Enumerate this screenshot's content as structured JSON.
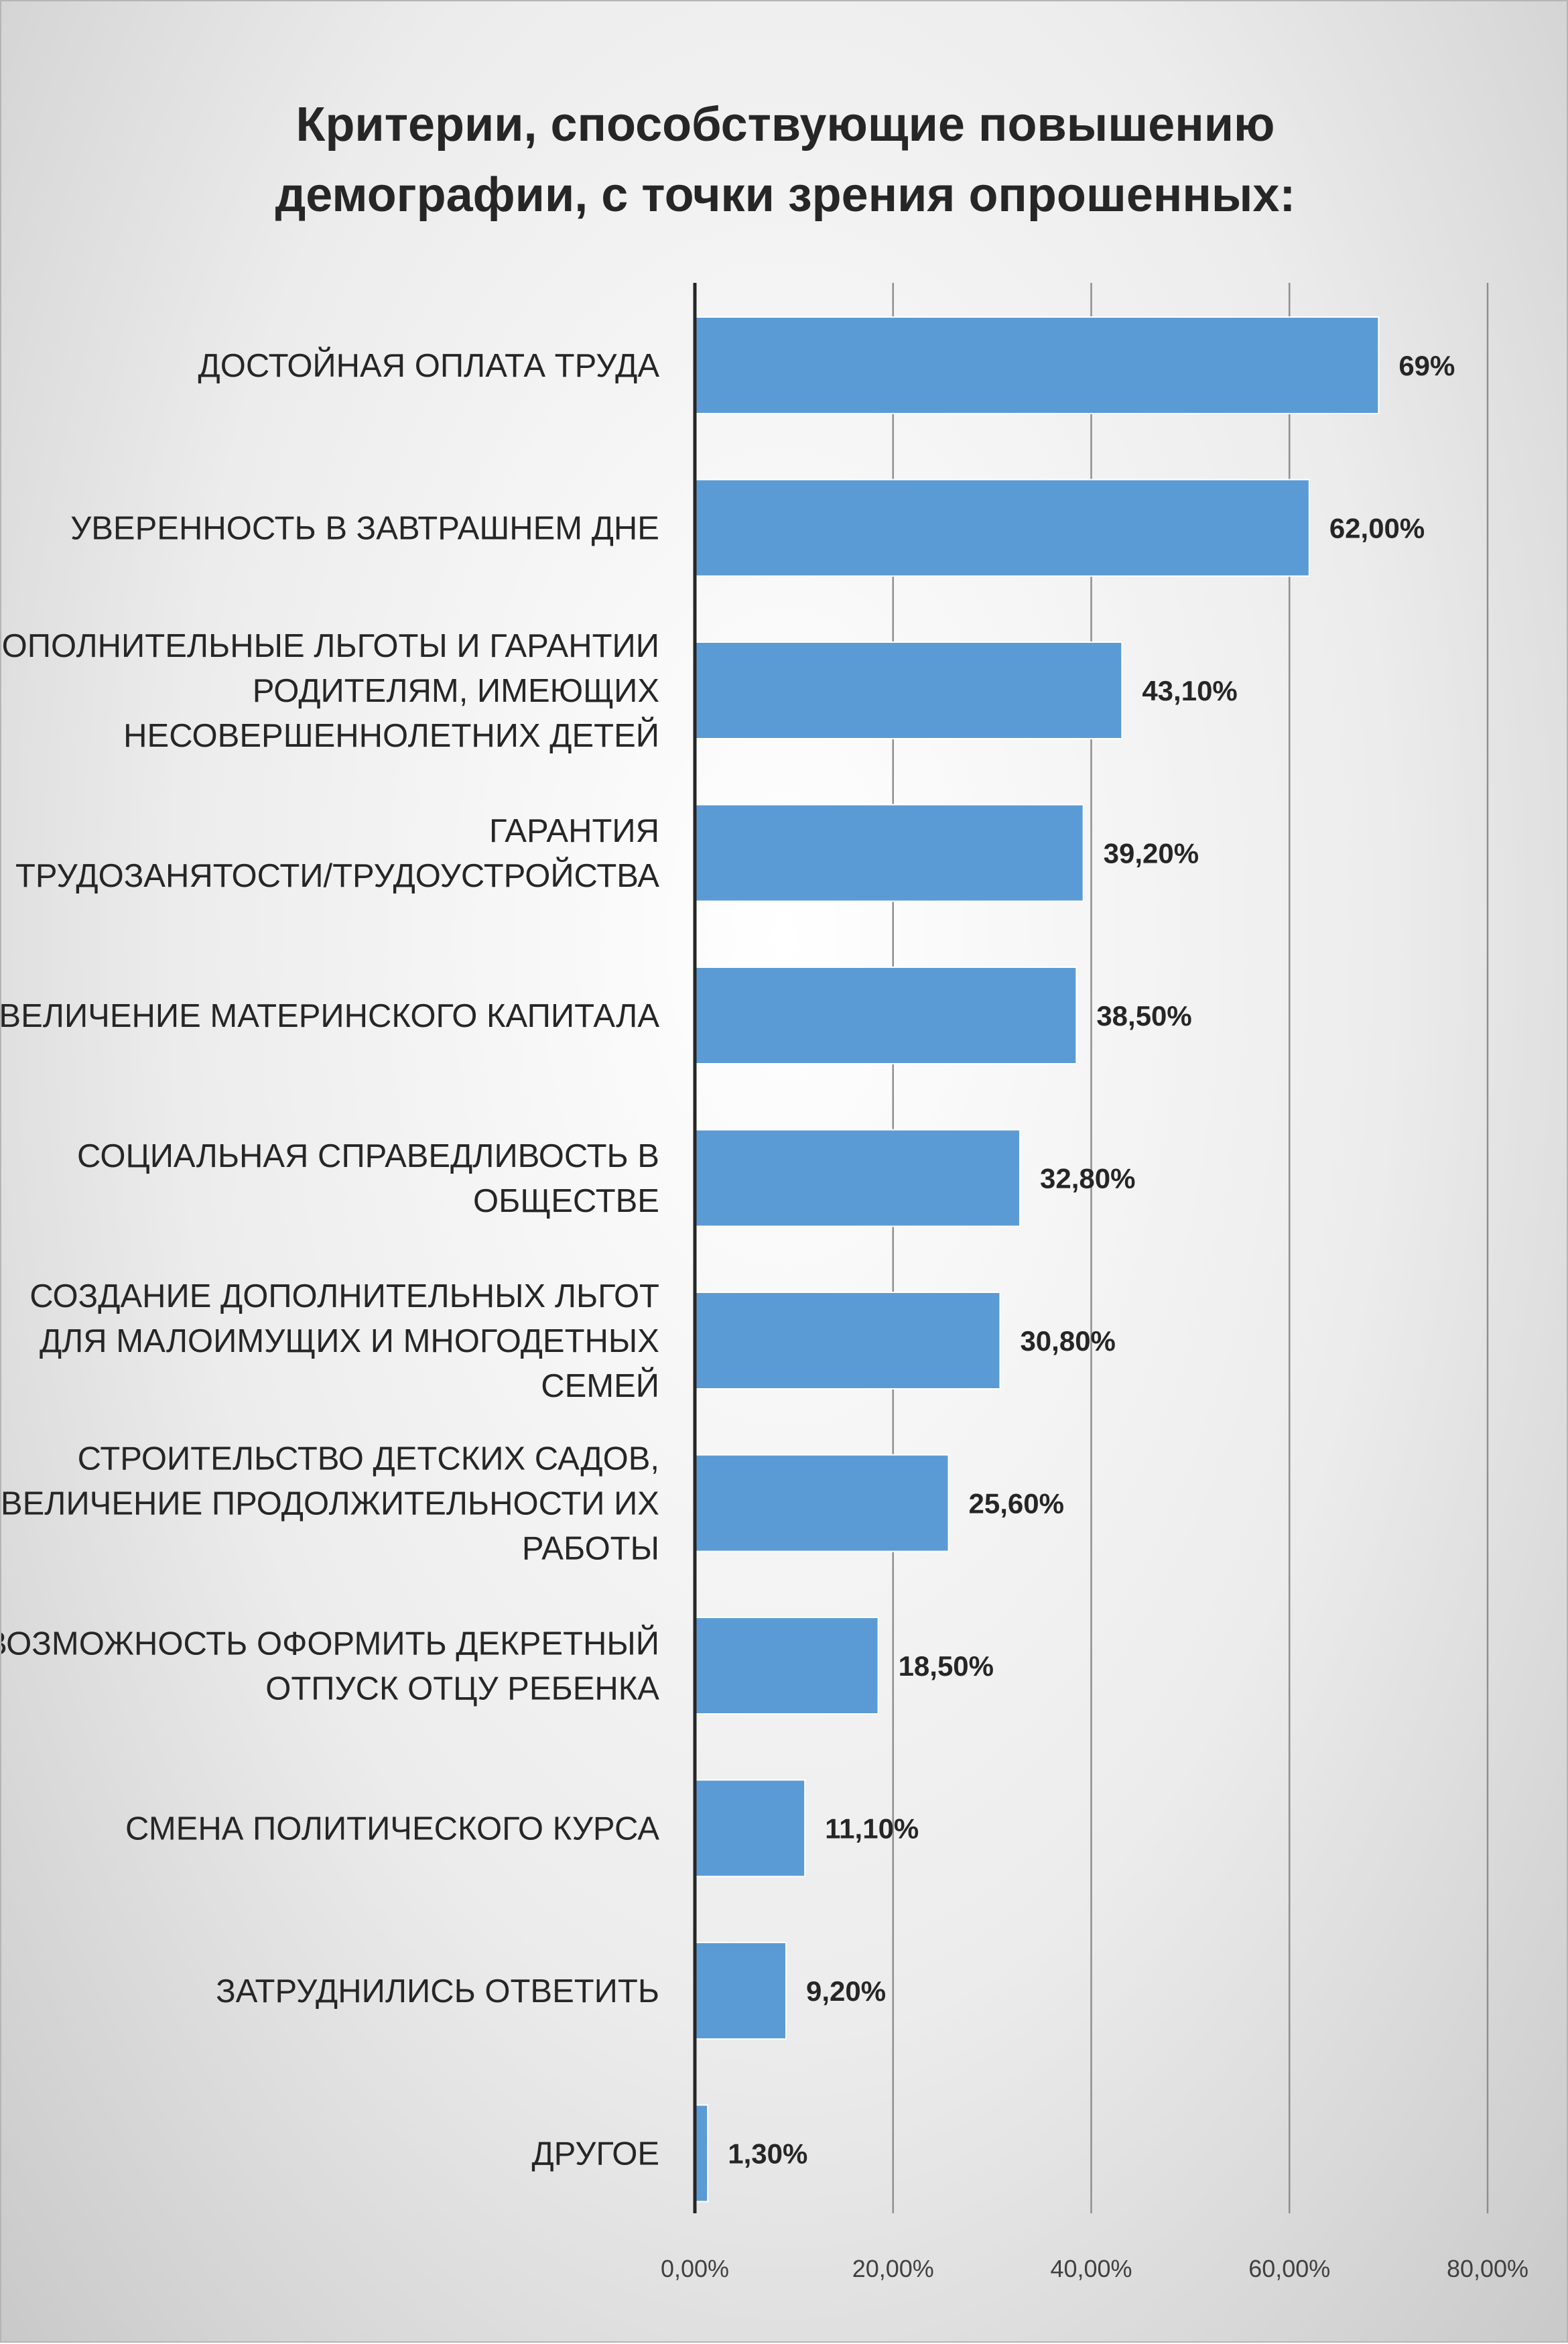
{
  "chart_data": {
    "type": "bar",
    "orientation": "horizontal",
    "title": [
      "Критерии, способствующие повышению",
      "демографии, с точки зрения опрошенных:"
    ],
    "categories": [
      [
        "ДОСТОЙНАЯ ОПЛАТА ТРУДА"
      ],
      [
        "УВЕРЕННОСТЬ В ЗАВТРАШНЕМ ДНЕ"
      ],
      [
        "ДОПОЛНИТЕЛЬНЫЕ ЛЬГОТЫ И ГАРАНТИИ",
        "РОДИТЕЛЯМ, ИМЕЮЩИХ",
        "НЕСОВЕРШЕННОЛЕТНИХ ДЕТЕЙ"
      ],
      [
        "ГАРАНТИЯ",
        "ТРУДОЗАНЯТОСТИ/ТРУДОУСТРОЙСТВА"
      ],
      [
        "УВЕЛИЧЕНИЕ МАТЕРИНСКОГО КАПИТАЛА"
      ],
      [
        "СОЦИАЛЬНАЯ СПРАВЕДЛИВОСТЬ В",
        "ОБЩЕСТВЕ"
      ],
      [
        "СОЗДАНИЕ ДОПОЛНИТЕЛЬНЫХ ЛЬГОТ",
        "ДЛЯ МАЛОИМУЩИХ И МНОГОДЕТНЫХ",
        "СЕМЕЙ"
      ],
      [
        "СТРОИТЕЛЬСТВО ДЕТСКИХ САДОВ,",
        "УВЕЛИЧЕНИЕ ПРОДОЛЖИТЕЛЬНОСТИ ИХ",
        "РАБОТЫ"
      ],
      [
        "ВОЗМОЖНОСТЬ ОФОРМИТЬ ДЕКРЕТНЫЙ",
        "ОТПУСК ОТЦУ РЕБЕНКА"
      ],
      [
        "СМЕНА ПОЛИТИЧЕСКОГО КУРСА"
      ],
      [
        "ЗАТРУДНИЛИСЬ ОТВЕТИТЬ"
      ],
      [
        "ДРУГОЕ"
      ]
    ],
    "values": [
      69,
      62.0,
      43.1,
      39.2,
      38.5,
      32.8,
      30.8,
      25.6,
      18.5,
      11.1,
      9.2,
      1.3
    ],
    "value_labels": [
      "69%",
      "62,00%",
      "43,10%",
      "39,20%",
      "38,50%",
      "32,80%",
      "30,80%",
      "25,60%",
      "18,50%",
      "11,10%",
      "9,20%",
      "1,30%"
    ],
    "xlim": [
      0,
      80
    ],
    "xticks": [
      0,
      20,
      40,
      60,
      80
    ],
    "xtick_labels": [
      "0,00%",
      "20,00%",
      "40,00%",
      "60,00%",
      "80,00%"
    ],
    "grid": "vertical",
    "bar_color": "#5b9bd5"
  }
}
